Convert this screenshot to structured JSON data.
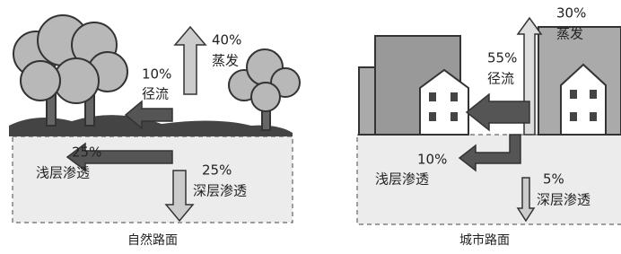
{
  "panels": [
    {
      "caption": "自然路面",
      "flows": [
        {
          "percent": "40%",
          "label": "蒸发"
        },
        {
          "percent": "10%",
          "label": "径流"
        },
        {
          "percent": "25%",
          "label": "浅层渗透"
        },
        {
          "percent": "25%",
          "label": "深层渗透"
        }
      ]
    },
    {
      "caption": "城市路面",
      "flows": [
        {
          "percent": "30%",
          "label": "蒸发"
        },
        {
          "percent": "55%",
          "label": "径流"
        },
        {
          "percent": "10%",
          "label": "浅层渗透"
        },
        {
          "percent": "5%",
          "label": "深层渗透"
        }
      ]
    }
  ]
}
